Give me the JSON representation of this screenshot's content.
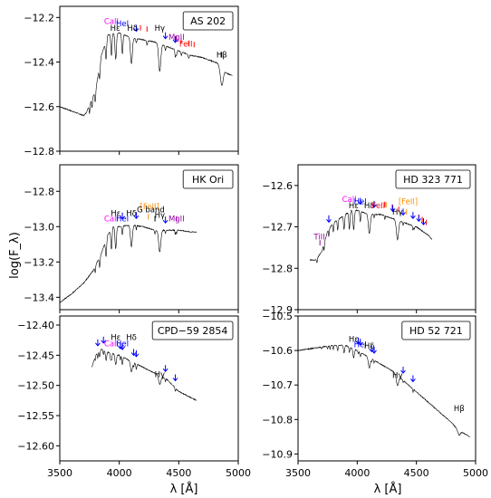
{
  "figure": {
    "ylabel": "log(F_λ)",
    "xlabel": "λ [Å]",
    "x_ticks": [
      "3500",
      "4000",
      "4500",
      "5000"
    ],
    "x_tick_values": [
      3500,
      4000,
      4500,
      5000
    ]
  },
  "colors": {
    "spectrum": "#000000",
    "black_label": "#000000",
    "caii": "#ff00ff",
    "hei": "#0000ff",
    "feii": "#ff0000",
    "mgii": "#9900aa",
    "tiii": "#9900aa",
    "gband": "#000000",
    "fe_bracket": "#ff8c00",
    "arrow": "#0000ff"
  },
  "chart_data": [
    {
      "type": "line",
      "title": "AS 202",
      "xlim": [
        3500,
        5000
      ],
      "ylim": [
        -12.8,
        -12.15
      ],
      "yticks": [
        -12.2,
        -12.4,
        -12.6,
        -12.8
      ],
      "ytick_labels": [
        "−12.2",
        "−12.4",
        "−12.6",
        "−12.8"
      ],
      "continuum": [
        [
          3500,
          -12.6
        ],
        [
          3700,
          -12.64
        ],
        [
          3720,
          -12.63
        ],
        [
          3800,
          -12.53
        ],
        [
          3850,
          -12.37
        ],
        [
          3880,
          -12.32
        ],
        [
          3900,
          -12.28
        ],
        [
          3950,
          -12.27
        ],
        [
          4000,
          -12.27
        ],
        [
          4050,
          -12.28
        ],
        [
          4100,
          -12.29
        ],
        [
          4200,
          -12.3
        ],
        [
          4300,
          -12.31
        ],
        [
          4400,
          -12.33
        ],
        [
          4500,
          -12.35
        ],
        [
          4600,
          -12.37
        ],
        [
          4700,
          -12.38
        ],
        [
          4800,
          -12.4
        ],
        [
          4850,
          -12.41
        ],
        [
          4900,
          -12.45
        ],
        [
          4950,
          -12.46
        ]
      ],
      "dips": [
        [
          3750,
          0.1,
          3
        ],
        [
          3771,
          0.1,
          3
        ],
        [
          3798,
          0.12,
          4
        ],
        [
          3835,
          0.15,
          4
        ],
        [
          3889,
          0.22,
          5
        ],
        [
          3934,
          0.25,
          5
        ],
        [
          3970,
          0.3,
          6
        ],
        [
          4026,
          0.23,
          5
        ],
        [
          4102,
          0.3,
          8
        ],
        [
          4143,
          0.05,
          4
        ],
        [
          4233,
          0.05,
          4
        ],
        [
          4340,
          0.32,
          9
        ],
        [
          4388,
          0.05,
          4
        ],
        [
          4471,
          0.08,
          4
        ],
        [
          4481,
          0.06,
          4
        ],
        [
          4522,
          0.04,
          4
        ],
        [
          4584,
          0.04,
          4
        ],
        [
          4861,
          0.22,
          12
        ]
      ],
      "labels": [
        {
          "text": "CaII",
          "x": 3934,
          "y": -12.23,
          "color": "caii"
        },
        {
          "text": "HeI",
          "x": 4026,
          "y": -12.24,
          "color": "hei"
        },
        {
          "text": "Hε",
          "x": 3965,
          "y": -12.26,
          "color": "black_label"
        },
        {
          "text": "Hδ",
          "x": 4110,
          "y": -12.26,
          "color": "black_label"
        },
        {
          "text": "Hγ",
          "x": 4340,
          "y": -12.26,
          "color": "black_label"
        },
        {
          "text": "MgII",
          "x": 4481,
          "y": -12.3,
          "color": "mgii"
        },
        {
          "text": "FeII",
          "x": 4560,
          "y": -12.33,
          "color": "feii"
        },
        {
          "text": "Hβ",
          "x": 4861,
          "y": -12.38,
          "color": "black_label"
        }
      ],
      "arrows": [
        4143,
        4388,
        4471
      ],
      "ticks": [
        [
          4233,
          "feii"
        ],
        [
          4520,
          "feii"
        ],
        [
          4583,
          "feii"
        ],
        [
          4629,
          "feii"
        ],
        [
          4178,
          "feii"
        ],
        [
          4481,
          "mgii"
        ],
        [
          4861,
          "black_label"
        ]
      ]
    },
    {
      "type": "line",
      "title": "HK Ori",
      "xlim": [
        3500,
        5000
      ],
      "ylim": [
        -13.47,
        -12.65
      ],
      "yticks": [
        -12.8,
        -13.0,
        -13.2,
        -13.4
      ],
      "ytick_labels": [
        "−12.8",
        "−13.0",
        "−13.2",
        "−13.4"
      ],
      "continuum": [
        [
          3500,
          -13.43
        ],
        [
          3600,
          -13.38
        ],
        [
          3700,
          -13.32
        ],
        [
          3780,
          -13.25
        ],
        [
          3850,
          -13.15
        ],
        [
          3900,
          -13.05
        ],
        [
          3950,
          -13.0
        ],
        [
          4000,
          -13.0
        ],
        [
          4100,
          -12.99
        ],
        [
          4200,
          -13.0
        ],
        [
          4300,
          -13.02
        ],
        [
          4400,
          -13.02
        ],
        [
          4500,
          -13.02
        ],
        [
          4600,
          -13.03
        ],
        [
          4650,
          -13.03
        ]
      ],
      "dips": [
        [
          3798,
          0.08,
          3
        ],
        [
          3835,
          0.12,
          4
        ],
        [
          3889,
          0.2,
          5
        ],
        [
          3934,
          0.23,
          5
        ],
        [
          3970,
          0.25,
          6
        ],
        [
          4026,
          0.1,
          4
        ],
        [
          4102,
          0.25,
          8
        ],
        [
          4143,
          0.05,
          3
        ],
        [
          4300,
          0.04,
          4
        ],
        [
          4340,
          0.25,
          9
        ],
        [
          4388,
          0.04,
          3
        ],
        [
          4471,
          0.05,
          3
        ],
        [
          4481,
          0.04,
          3
        ]
      ],
      "labels": [
        {
          "text": "[FeII]",
          "x": 4255,
          "y": -12.9,
          "color": "fe_bracket"
        },
        {
          "text": "G band",
          "x": 4265,
          "y": -12.92,
          "color": "gband"
        },
        {
          "text": "Hε",
          "x": 3970,
          "y": -12.94,
          "color": "black_label"
        },
        {
          "text": "Hδ",
          "x": 4102,
          "y": -12.94,
          "color": "black_label"
        },
        {
          "text": "Hγ",
          "x": 4340,
          "y": -12.95,
          "color": "black_label"
        },
        {
          "text": "CaII",
          "x": 3934,
          "y": -12.97,
          "color": "caii"
        },
        {
          "text": "HeI",
          "x": 4026,
          "y": -12.97,
          "color": "hei"
        },
        {
          "text": "MgII",
          "x": 4481,
          "y": -12.97,
          "color": "mgii"
        }
      ],
      "arrows": [
        4026,
        4143,
        4388
      ],
      "ticks": [
        [
          4300,
          "gband"
        ],
        [
          4244,
          "fe_bracket"
        ],
        [
          4481,
          "mgii"
        ]
      ]
    },
    {
      "type": "line",
      "title": "HD 323 771",
      "xlim": [
        3500,
        5000
      ],
      "ylim": [
        -12.9,
        -12.55
      ],
      "yticks": [
        -12.6,
        -12.7,
        -12.8,
        -12.9
      ],
      "ytick_labels": [
        "−12.6",
        "−12.7",
        "−12.8",
        "−12.9"
      ],
      "continuum": [
        [
          3600,
          -12.78
        ],
        [
          3650,
          -12.78
        ],
        [
          3700,
          -12.76
        ],
        [
          3750,
          -12.71
        ],
        [
          3800,
          -12.69
        ],
        [
          3850,
          -12.68
        ],
        [
          3900,
          -12.67
        ],
        [
          3950,
          -12.66
        ],
        [
          4000,
          -12.66
        ],
        [
          4100,
          -12.67
        ],
        [
          4200,
          -12.67
        ],
        [
          4300,
          -12.68
        ],
        [
          4400,
          -12.69
        ],
        [
          4500,
          -12.7
        ],
        [
          4600,
          -12.72
        ],
        [
          4630,
          -12.73
        ]
      ],
      "dips": [
        [
          3660,
          0.05,
          3
        ],
        [
          3720,
          0.08,
          3
        ],
        [
          3760,
          0.08,
          3
        ],
        [
          3798,
          0.1,
          4
        ],
        [
          3835,
          0.12,
          4
        ],
        [
          3889,
          0.16,
          5
        ],
        [
          3934,
          0.2,
          5
        ],
        [
          3970,
          0.22,
          6
        ],
        [
          4026,
          0.12,
          4
        ],
        [
          4102,
          0.22,
          8
        ],
        [
          4143,
          0.04,
          3
        ],
        [
          4233,
          0.04,
          3
        ],
        [
          4340,
          0.22,
          9
        ],
        [
          4388,
          0.04,
          3
        ],
        [
          4471,
          0.05,
          3
        ],
        [
          4481,
          0.04,
          3
        ]
      ],
      "labels": [
        {
          "text": "TiII",
          "x": 3680,
          "y": -12.73,
          "color": "tiii"
        },
        {
          "text": "CaII",
          "x": 3934,
          "y": -12.64,
          "color": "caii"
        },
        {
          "text": "HeI",
          "x": 4026,
          "y": -12.645,
          "color": "hei"
        },
        {
          "text": "Hε",
          "x": 3970,
          "y": -12.655,
          "color": "black_label"
        },
        {
          "text": "Hδ",
          "x": 4102,
          "y": -12.655,
          "color": "black_label"
        },
        {
          "text": "FeII",
          "x": 4180,
          "y": -12.655,
          "color": "feii"
        },
        {
          "text": "Hγ",
          "x": 4340,
          "y": -12.67,
          "color": "black_label"
        },
        {
          "text": "[FeII]",
          "x": 4430,
          "y": -12.645,
          "color": "fe_bracket"
        }
      ],
      "arrows": [
        3760,
        4026,
        4143,
        4300,
        4388,
        4471,
        4520,
        4560
      ],
      "ticks": [
        [
          4233,
          "feii"
        ],
        [
          4296,
          "feii"
        ],
        [
          4351,
          "feii"
        ],
        [
          4520,
          "feii"
        ],
        [
          4549,
          "feii"
        ],
        [
          4584,
          "feii"
        ],
        [
          4244,
          "fe_bracket"
        ],
        [
          4416,
          "fe_bracket"
        ],
        [
          3685,
          "tiii"
        ],
        [
          3760,
          "tiii"
        ]
      ]
    },
    {
      "type": "line",
      "title": "CPD−59 2854",
      "xlim": [
        3500,
        5000
      ],
      "ylim": [
        -12.625,
        -12.385
      ],
      "yticks": [
        -12.4,
        -12.45,
        -12.5,
        -12.55,
        -12.6
      ],
      "ytick_labels": [
        "−12.40",
        "−12.45",
        "−12.50",
        "−12.55",
        "−12.60"
      ],
      "continuum": [
        [
          3770,
          -12.47
        ],
        [
          3800,
          -12.45
        ],
        [
          3850,
          -12.44
        ],
        [
          3900,
          -12.445
        ],
        [
          4000,
          -12.45
        ],
        [
          4100,
          -12.46
        ],
        [
          4200,
          -12.47
        ],
        [
          4300,
          -12.48
        ],
        [
          4400,
          -12.49
        ],
        [
          4500,
          -12.51
        ],
        [
          4600,
          -12.52
        ],
        [
          4650,
          -12.525
        ]
      ],
      "dips": [
        [
          3798,
          0.05,
          3
        ],
        [
          3819,
          0.06,
          3
        ],
        [
          3835,
          0.07,
          4
        ],
        [
          3867,
          0.05,
          3
        ],
        [
          3889,
          0.1,
          5
        ],
        [
          3926,
          0.06,
          3
        ],
        [
          3934,
          0.08,
          4
        ],
        [
          3970,
          0.12,
          6
        ],
        [
          4009,
          0.05,
          3
        ],
        [
          4026,
          0.09,
          4
        ],
        [
          4102,
          0.12,
          8
        ],
        [
          4121,
          0.05,
          3
        ],
        [
          4143,
          0.06,
          4
        ],
        [
          4340,
          0.1,
          9
        ],
        [
          4388,
          0.03,
          3
        ],
        [
          4471,
          0.04,
          3
        ]
      ],
      "labels": [
        {
          "text": "Hε",
          "x": 3970,
          "y": -12.425,
          "color": "black_label"
        },
        {
          "text": "Hδ",
          "x": 4102,
          "y": -12.425,
          "color": "black_label"
        },
        {
          "text": "CaII",
          "x": 3934,
          "y": -12.435,
          "color": "caii"
        },
        {
          "text": "HeI",
          "x": 4026,
          "y": -12.435,
          "color": "hei"
        },
        {
          "text": "Hγ",
          "x": 4340,
          "y": -12.486,
          "color": "black_label"
        }
      ],
      "arrows": [
        3819,
        3867,
        4009,
        4026,
        4121,
        4143,
        4388,
        4471
      ],
      "ticks": []
    },
    {
      "type": "line",
      "title": "HD 52 721",
      "xlim": [
        3500,
        5000
      ],
      "ylim": [
        -10.92,
        -10.5
      ],
      "yticks": [
        -10.5,
        -10.6,
        -10.7,
        -10.8,
        -10.9
      ],
      "ytick_labels": [
        "−10.5",
        "−10.6",
        "−10.7",
        "−10.8",
        "−10.9"
      ],
      "continuum": [
        [
          3500,
          -10.6
        ],
        [
          3600,
          -10.595
        ],
        [
          3700,
          -10.59
        ],
        [
          3800,
          -10.585
        ],
        [
          3900,
          -10.585
        ],
        [
          4000,
          -10.6
        ],
        [
          4100,
          -10.62
        ],
        [
          4200,
          -10.64
        ],
        [
          4300,
          -10.66
        ],
        [
          4400,
          -10.69
        ],
        [
          4500,
          -10.72
        ],
        [
          4600,
          -10.75
        ],
        [
          4700,
          -10.78
        ],
        [
          4800,
          -10.81
        ],
        [
          4850,
          -10.83
        ],
        [
          4900,
          -10.84
        ],
        [
          4950,
          -10.85
        ]
      ],
      "dips": [
        [
          3700,
          0.02,
          3
        ],
        [
          3750,
          0.03,
          3
        ],
        [
          3771,
          0.04,
          3
        ],
        [
          3798,
          0.05,
          3
        ],
        [
          3835,
          0.06,
          4
        ],
        [
          3889,
          0.09,
          5
        ],
        [
          3934,
          0.06,
          4
        ],
        [
          3970,
          0.1,
          6
        ],
        [
          4009,
          0.03,
          3
        ],
        [
          4026,
          0.05,
          4
        ],
        [
          4102,
          0.12,
          8
        ],
        [
          4121,
          0.03,
          3
        ],
        [
          4143,
          0.03,
          3
        ],
        [
          4340,
          0.12,
          9
        ],
        [
          4388,
          0.03,
          3
        ],
        [
          4471,
          0.04,
          3
        ],
        [
          4861,
          0.05,
          10
        ]
      ],
      "labels": [
        {
          "text": "Hε",
          "x": 3970,
          "y": -10.575,
          "color": "black_label"
        },
        {
          "text": "HeI",
          "x": 4026,
          "y": -10.59,
          "color": "hei"
        },
        {
          "text": "Hδ",
          "x": 4102,
          "y": -10.595,
          "color": "black_label"
        },
        {
          "text": "Hγ",
          "x": 4340,
          "y": -10.68,
          "color": "black_label"
        },
        {
          "text": "Hβ",
          "x": 4861,
          "y": -10.775,
          "color": "black_label"
        }
      ],
      "arrows": [
        4009,
        4026,
        4121,
        4143,
        4388,
        4471
      ],
      "ticks": []
    }
  ]
}
